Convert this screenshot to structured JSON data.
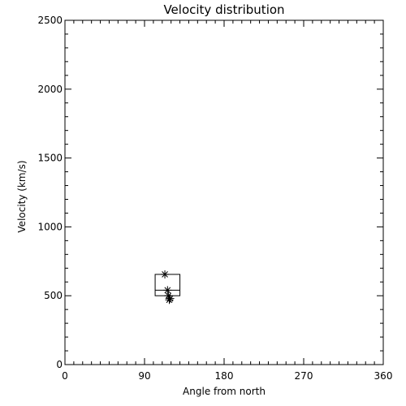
{
  "chart_data": {
    "type": "scatter",
    "title": "Velocity distribution",
    "xlabel": "Angle from north",
    "ylabel": "Velocity (km/s)",
    "xlim": [
      0,
      360
    ],
    "ylim": [
      0,
      2500
    ],
    "x_ticks": [
      0,
      90,
      180,
      270,
      360
    ],
    "y_ticks": [
      0,
      500,
      1000,
      1500,
      2000,
      2500
    ],
    "x_minor_step": 10,
    "y_minor_step": 100,
    "grid": false,
    "series": [
      {
        "marker": "asterisk",
        "points": [
          {
            "x": 113,
            "y": 655
          },
          {
            "x": 116,
            "y": 540
          },
          {
            "x": 117,
            "y": 500
          },
          {
            "x": 119,
            "y": 480
          },
          {
            "x": 118,
            "y": 470
          }
        ]
      }
    ],
    "box": {
      "x_min": 102,
      "x_max": 130,
      "y_min": 500,
      "y_max": 655,
      "median": 540
    },
    "colors": {
      "foreground": "#000000",
      "background": "#ffffff"
    }
  }
}
